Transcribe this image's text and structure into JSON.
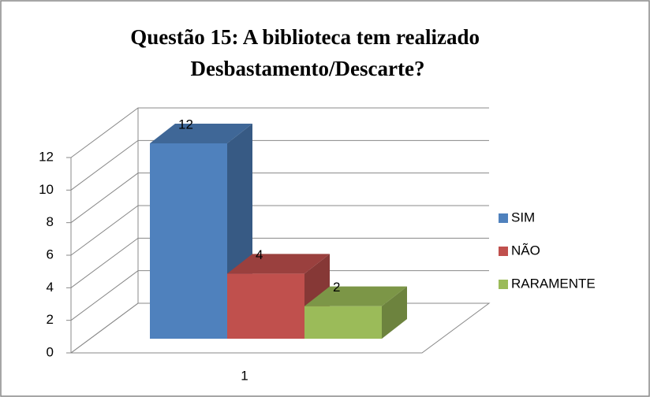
{
  "chart_data": {
    "type": "bar3d",
    "title": "Questão 15: A biblioteca tem realizado Desbastamento/Descarte?",
    "categories": [
      "1"
    ],
    "series": [
      {
        "name": "SIM",
        "color": "#4f81bd",
        "values": [
          12
        ]
      },
      {
        "name": "NÃO",
        "color": "#c0504d",
        "values": [
          4
        ]
      },
      {
        "name": "RARAMENTE",
        "color": "#9bbb59",
        "values": [
          2
        ]
      }
    ],
    "ylim": [
      0,
      12
    ],
    "yticks": [
      0,
      2,
      4,
      6,
      8,
      10,
      12
    ],
    "grid": true,
    "legend": "right"
  }
}
